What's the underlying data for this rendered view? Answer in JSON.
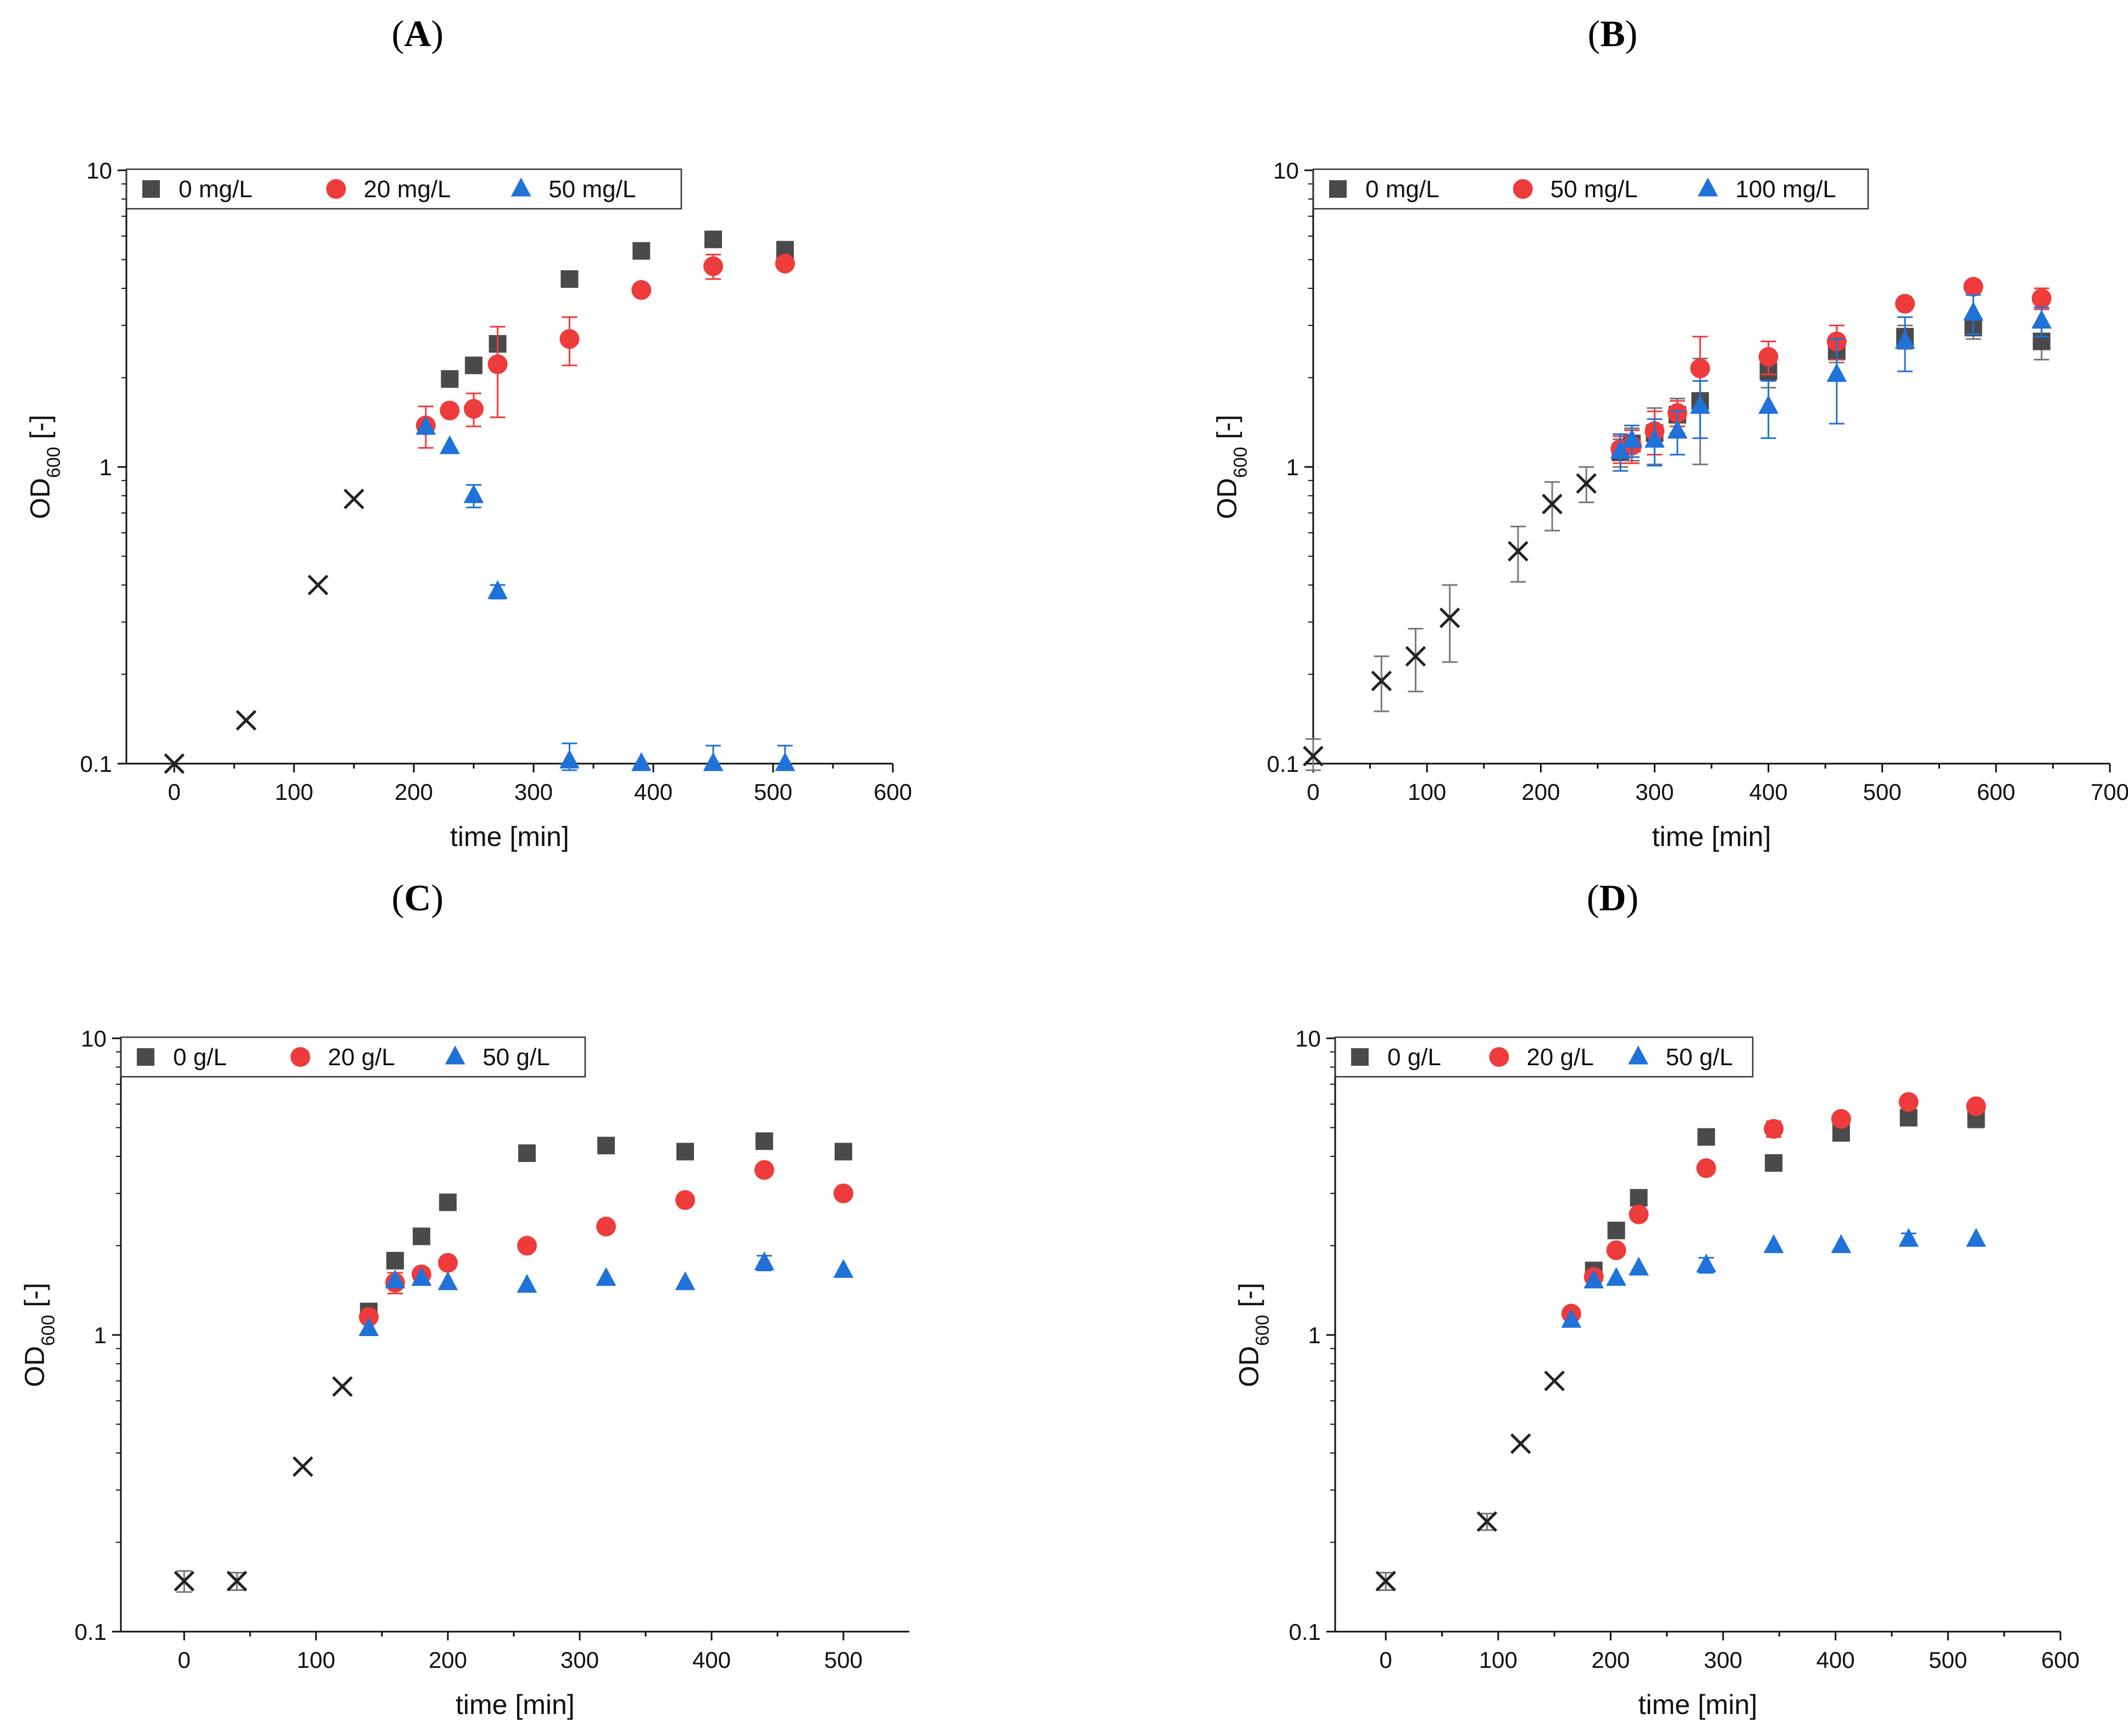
{
  "figure": {
    "colors": {
      "s0": "#4a4a4a",
      "s1": "#ee3b3b",
      "s2": "#1f72d8",
      "pre": "#222222",
      "err_s0": "#777777"
    }
  },
  "chart_data": [
    {
      "panel": "(A)",
      "type": "scatter",
      "xlabel": "time [min]",
      "ylabel": "OD600 [-]",
      "ylabel_main": "OD",
      "ylabel_sub": "600",
      "ylabel_rest": " [-]",
      "xlim": [
        -40,
        600
      ],
      "ylim": [
        0.1,
        10
      ],
      "yscale": "log",
      "xticks": [
        0,
        100,
        200,
        300,
        400,
        500,
        600
      ],
      "yticks": [
        {
          "v": 0.1,
          "label": "0.1"
        },
        {
          "v": 1,
          "label": "1"
        },
        {
          "v": 10,
          "label": "10"
        }
      ],
      "legend": [
        "0 mg/L",
        "20  mg/L",
        "50 mg/L"
      ],
      "precondition": {
        "x": [
          0,
          60,
          120,
          150
        ],
        "y": [
          0.1,
          0.14,
          0.4,
          0.78
        ]
      },
      "series": [
        {
          "name": "0 mg/L",
          "marker": "square",
          "x": [
            230,
            250,
            270,
            330,
            390,
            450,
            510
          ],
          "y": [
            1.98,
            2.2,
            2.6,
            4.3,
            5.35,
            5.85,
            5.4
          ],
          "err": [
            0.12,
            0,
            0,
            0,
            0,
            0,
            0
          ]
        },
        {
          "name": "20  mg/L",
          "marker": "circle",
          "x": [
            210,
            230,
            250,
            270,
            330,
            390,
            450,
            510
          ],
          "y": [
            1.38,
            1.55,
            1.57,
            2.22,
            2.7,
            3.95,
            4.75,
            4.85
          ],
          "err": [
            0.22,
            0,
            0.2,
            0.75,
            0.5,
            0,
            0.45,
            0
          ]
        },
        {
          "name": "50 mg/L",
          "marker": "triangle",
          "x": [
            210,
            230,
            250,
            270,
            330,
            390,
            450,
            510
          ],
          "y": [
            1.36,
            1.17,
            0.8,
            0.38,
            0.102,
            0.1,
            0.1,
            0.1
          ],
          "err": [
            0,
            0,
            0.07,
            0.02,
            0.015,
            0,
            0.015,
            0.015
          ]
        }
      ]
    },
    {
      "panel": "(B)",
      "type": "scatter",
      "xlabel": "time [min]",
      "ylabel": "OD600 [-]",
      "ylabel_main": "OD",
      "ylabel_sub": "600",
      "ylabel_rest": " [-]",
      "xlim": [
        0,
        700
      ],
      "ylim": [
        0.1,
        10
      ],
      "yscale": "log",
      "xticks": [
        0,
        100,
        200,
        300,
        400,
        500,
        600,
        700
      ],
      "yticks": [
        {
          "v": 0.1,
          "label": "0.1"
        },
        {
          "v": 1,
          "label": "1"
        },
        {
          "v": 10,
          "label": "10"
        }
      ],
      "legend": [
        "0 mg/L",
        "50 mg/L",
        "100 mg/L"
      ],
      "precondition": {
        "x": [
          0,
          60,
          90,
          120,
          180,
          210,
          240
        ],
        "y": [
          0.106,
          0.19,
          0.23,
          0.31,
          0.52,
          0.75,
          0.88
        ],
        "err": [
          0.015,
          0.04,
          0.055,
          0.09,
          0.11,
          0.14,
          0.12
        ]
      },
      "series": [
        {
          "name": "0 mg/L",
          "marker": "square",
          "x": [
            270,
            280,
            300,
            320,
            340,
            400,
            460,
            520,
            580,
            640
          ],
          "y": [
            1.12,
            1.2,
            1.3,
            1.5,
            1.67,
            2.1,
            2.45,
            2.75,
            2.95,
            2.65
          ],
          "err": [
            0.12,
            0.15,
            0.28,
            0.2,
            0.65,
            0.25,
            0.2,
            0.25,
            0.25,
            0.35
          ]
        },
        {
          "name": "50 mg/L",
          "marker": "circle",
          "x": [
            270,
            280,
            300,
            320,
            340,
            400,
            460,
            520,
            580,
            640
          ],
          "y": [
            1.15,
            1.18,
            1.32,
            1.52,
            2.15,
            2.35,
            2.65,
            3.55,
            4.05,
            3.7
          ],
          "err": [
            0.12,
            0.15,
            0.22,
            0.15,
            0.6,
            0.3,
            0.35,
            0,
            0,
            0.3
          ]
        },
        {
          "name": "100 mg/L",
          "marker": "triangle",
          "x": [
            270,
            280,
            300,
            320,
            340,
            400,
            460,
            520,
            580,
            640
          ],
          "y": [
            1.13,
            1.23,
            1.23,
            1.32,
            1.6,
            1.6,
            2.05,
            2.65,
            3.3,
            3.1
          ],
          "err": [
            0.16,
            0.15,
            0.22,
            0.22,
            0.35,
            0.35,
            0.65,
            0.55,
            0.5,
            0.35
          ]
        }
      ]
    },
    {
      "panel": "(C)",
      "type": "scatter",
      "xlabel": "time [min]",
      "ylabel": "OD600 [-]",
      "ylabel_main": "OD",
      "ylabel_sub": "600",
      "ylabel_rest": " [-]",
      "xlim": [
        -48,
        550
      ],
      "ylim": [
        0.1,
        10
      ],
      "yscale": "log",
      "xticks": [
        0,
        100,
        200,
        300,
        400,
        500
      ],
      "yticks": [
        {
          "v": 0.1,
          "label": "0.1"
        },
        {
          "v": 1,
          "label": "1"
        },
        {
          "v": 10,
          "label": "10"
        }
      ],
      "legend": [
        "0 g/L",
        "20 g/L",
        "50 g/L"
      ],
      "precondition": {
        "x": [
          0,
          40,
          90,
          120
        ],
        "y": [
          0.148,
          0.148,
          0.36,
          0.67
        ],
        "err": [
          0.012,
          0.01,
          0,
          0
        ]
      },
      "series": [
        {
          "name": "0 g/L",
          "marker": "square",
          "x": [
            140,
            160,
            180,
            200,
            260,
            320,
            380,
            440,
            500
          ],
          "y": [
            1.2,
            1.78,
            2.15,
            2.8,
            4.1,
            4.35,
            4.15,
            4.5,
            4.15
          ],
          "err": [
            0,
            0,
            0,
            0,
            0,
            0,
            0,
            0,
            0
          ]
        },
        {
          "name": "20 g/L",
          "marker": "circle",
          "x": [
            140,
            160,
            180,
            200,
            260,
            320,
            380,
            440,
            500
          ],
          "y": [
            1.15,
            1.5,
            1.6,
            1.75,
            2.0,
            2.32,
            2.85,
            3.6,
            3.0
          ],
          "err": [
            0,
            0.12,
            0,
            0,
            0,
            0,
            0,
            0,
            0
          ]
        },
        {
          "name": "50 g/L",
          "marker": "triangle",
          "x": [
            140,
            160,
            180,
            200,
            260,
            320,
            380,
            440,
            500
          ],
          "y": [
            1.05,
            1.52,
            1.55,
            1.5,
            1.47,
            1.55,
            1.5,
            1.75,
            1.65
          ],
          "err": [
            0,
            0,
            0,
            0,
            0,
            0,
            0,
            0.1,
            0
          ]
        }
      ]
    },
    {
      "panel": "(D)",
      "type": "scatter",
      "xlabel": "time [min]",
      "ylabel": "OD600 [-]",
      "ylabel_main": "OD",
      "ylabel_sub": "600",
      "ylabel_rest": " [-]",
      "xlim": [
        -45,
        600
      ],
      "ylim": [
        0.1,
        10
      ],
      "yscale": "log",
      "xticks": [
        0,
        100,
        200,
        300,
        400,
        500,
        600
      ],
      "yticks": [
        {
          "v": 0.1,
          "label": "0.1"
        },
        {
          "v": 1,
          "label": "1"
        },
        {
          "v": 10,
          "label": "10"
        }
      ],
      "legend": [
        "0 g/L",
        "20 g/L",
        "50 g/L"
      ],
      "precondition": {
        "x": [
          0,
          90,
          120,
          150
        ],
        "y": [
          0.148,
          0.235,
          0.43,
          0.7
        ],
        "err": [
          0.01,
          0.015,
          0,
          0
        ]
      },
      "series": [
        {
          "name": "0 g/L",
          "marker": "square",
          "x": [
            185,
            205,
            225,
            285,
            345,
            405,
            465,
            525
          ],
          "y": [
            1.65,
            2.25,
            2.9,
            4.65,
            3.8,
            4.8,
            5.4,
            5.35
          ],
          "err": [
            0,
            0,
            0,
            0,
            0,
            0,
            0,
            0.35
          ]
        },
        {
          "name": "20 g/L",
          "marker": "circle",
          "x": [
            165,
            185,
            205,
            225,
            285,
            345,
            405,
            465,
            525
          ],
          "y": [
            1.18,
            1.57,
            1.93,
            2.55,
            3.65,
            4.95,
            5.35,
            6.1,
            5.9
          ],
          "err": [
            0,
            0,
            0,
            0,
            0,
            0.3,
            0,
            0,
            0
          ]
        },
        {
          "name": "50 g/L",
          "marker": "triangle",
          "x": [
            165,
            185,
            205,
            225,
            285,
            345,
            405,
            465,
            525
          ],
          "y": [
            1.12,
            1.52,
            1.55,
            1.68,
            1.72,
            2.0,
            2.0,
            2.1,
            2.1
          ],
          "err": [
            0,
            0,
            0,
            0,
            0.1,
            0,
            0,
            0.1,
            0
          ]
        }
      ]
    }
  ]
}
